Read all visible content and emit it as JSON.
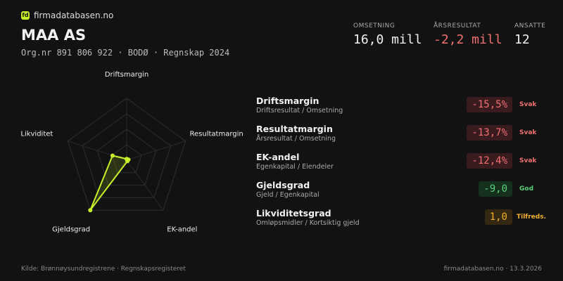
{
  "header": {
    "logo": "fd",
    "brand": "firmadatabasen.no",
    "company": "MAA AS",
    "subtitle": "Org.nr 891 806 922 · BODØ · Regnskap 2024"
  },
  "stats": [
    {
      "label": "OMSETNING",
      "value": "16,0 mill"
    },
    {
      "label": "ÅRSRESULTAT",
      "value": "-2,2 mill"
    },
    {
      "label": "ANSATTE",
      "value": "12"
    }
  ],
  "chart_data": {
    "type": "radar",
    "categories": [
      "Driftsmargin",
      "Resultatmargin",
      "EK-andel",
      "Gjeldsgrad",
      "Likviditet"
    ],
    "values": [
      2,
      3,
      2,
      100,
      24
    ],
    "rlim": [
      0,
      100
    ],
    "rticks": [
      25,
      50,
      75,
      100
    ],
    "color": "#c8f02a"
  },
  "metrics": [
    {
      "name": "Driftsmargin",
      "formula": "Driftsresultat / Omsetning",
      "value": "-15,5%",
      "rating": "Svak"
    },
    {
      "name": "Resultatmargin",
      "formula": "Årsresultat / Omsetning",
      "value": "-13,7%",
      "rating": "Svak"
    },
    {
      "name": "EK-andel",
      "formula": "Egenkapital / Eiendeler",
      "value": "-12,4%",
      "rating": "Svak"
    },
    {
      "name": "Gjeldsgrad",
      "formula": "Gjeld / Egenkapital",
      "value": "-9,0",
      "rating": "God"
    },
    {
      "name": "Likviditetsgrad",
      "formula": "Omløpsmidler / Kortsiktig gjeld",
      "value": "1,0",
      "rating": "Tilfreds."
    }
  ],
  "footer": {
    "source": "Kilde: Brønnøysundregistrene · Regnskapsregisteret",
    "site": "firmadatabasen.no · 13.3.2026"
  }
}
